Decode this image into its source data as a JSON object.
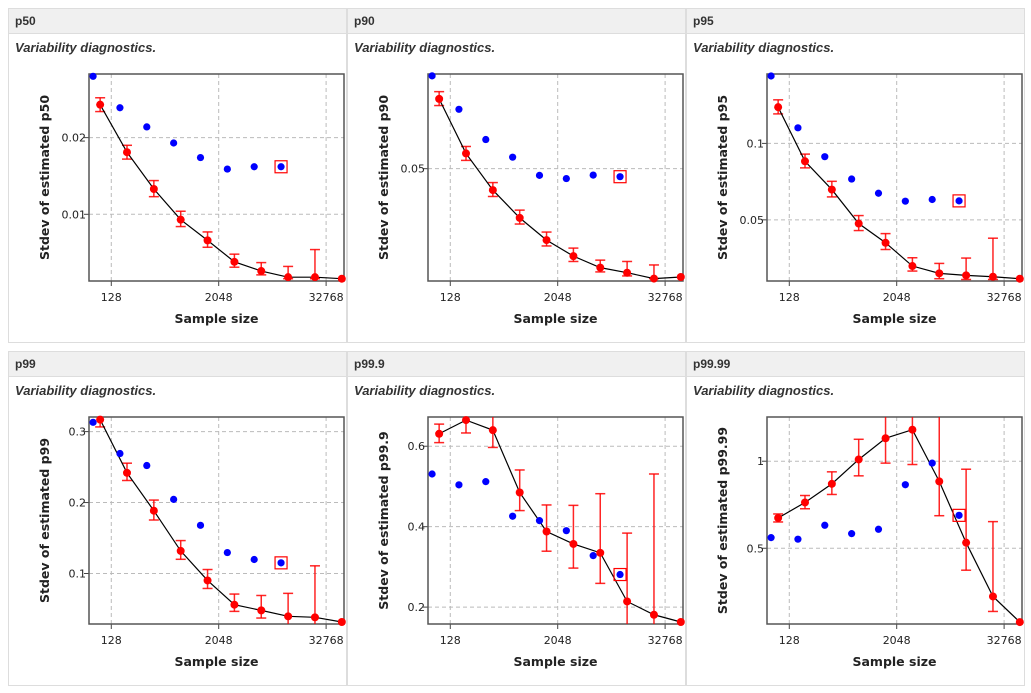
{
  "colors": {
    "blue": "#0000ff",
    "red": "#ff0000",
    "line": "#000000",
    "grid": "#bbbbbb"
  },
  "chart_data": [
    {
      "type": "scatter",
      "title": "p50",
      "subtitle": "Variability diagnostics.",
      "xlabel": "Sample size",
      "ylabel": "Stdev of estimated p50",
      "xscale": "log2",
      "xlim": [
        72,
        52000
      ],
      "xticks": [
        128,
        2048,
        32768
      ],
      "ylim": [
        0.0013,
        0.0283
      ],
      "yticks": [
        0.01,
        0.02
      ],
      "grid": true,
      "blue": {
        "x": [
          80,
          160,
          320,
          640,
          1280,
          2560,
          5120,
          10240
        ],
        "y": [
          0.028,
          0.0239,
          0.0214,
          0.0193,
          0.0174,
          0.0159,
          0.0162,
          0.0162
        ],
        "highlighted_index": 7
      },
      "red": {
        "x": [
          96,
          192,
          384,
          768,
          1536,
          3072,
          6144,
          12288,
          24576,
          49152
        ],
        "y": [
          0.0243,
          0.0181,
          0.0133,
          0.0093,
          0.0066,
          0.0038,
          0.0026,
          0.0018,
          0.0018,
          0.0016
        ],
        "lo": [
          0.0234,
          0.0172,
          0.0123,
          0.0084,
          0.0057,
          0.0031,
          0.0021,
          0.0016,
          0.0016,
          null
        ],
        "hi": [
          0.0252,
          0.019,
          0.0144,
          0.0104,
          0.0077,
          0.0048,
          0.0037,
          0.0032,
          0.0054,
          null
        ]
      }
    },
    {
      "type": "scatter",
      "title": "p90",
      "subtitle": "Variability diagnostics.",
      "xlabel": "Sample size",
      "ylabel": "Stdev of estimated p90",
      "xscale": "log2",
      "xlim": [
        72,
        52000
      ],
      "xticks": [
        128,
        2048,
        32768
      ],
      "ylim": [
        0.008,
        0.0854
      ],
      "yticks": [
        0.05
      ],
      "grid": true,
      "blue": {
        "x": [
          80,
          160,
          320,
          640,
          1280,
          2560,
          5120,
          10240
        ],
        "y": [
          0.0847,
          0.0722,
          0.0609,
          0.0543,
          0.0475,
          0.0463,
          0.0476,
          0.047
        ],
        "highlighted_index": 7
      },
      "red": {
        "x": [
          96,
          192,
          384,
          768,
          1536,
          3072,
          6144,
          12288,
          24576,
          49152
        ],
        "y": [
          0.0761,
          0.0557,
          0.042,
          0.0316,
          0.0233,
          0.0173,
          0.013,
          0.0111,
          0.0089,
          0.0095
        ],
        "lo": [
          0.0736,
          0.0531,
          0.0396,
          0.0293,
          0.0211,
          0.0153,
          0.0114,
          0.0099,
          0.0089,
          null
        ],
        "hi": [
          0.0788,
          0.0583,
          0.0448,
          0.0345,
          0.0263,
          0.0203,
          0.0158,
          0.0153,
          0.014,
          null
        ]
      }
    },
    {
      "type": "scatter",
      "title": "p95",
      "subtitle": "Variability diagnostics.",
      "xlabel": "Sample size",
      "ylabel": "Stdev of estimated p95",
      "xscale": "log2",
      "xlim": [
        72,
        52000
      ],
      "xticks": [
        128,
        2048,
        32768
      ],
      "ylim": [
        0.01,
        0.1454
      ],
      "yticks": [
        0.05,
        0.1
      ],
      "grid": true,
      "blue": {
        "x": [
          80,
          160,
          320,
          640,
          1280,
          2560,
          5120,
          10240
        ],
        "y": [
          0.1441,
          0.1102,
          0.0913,
          0.0767,
          0.0674,
          0.0622,
          0.0633,
          0.0624
        ],
        "highlighted_index": 7
      },
      "red": {
        "x": [
          96,
          192,
          384,
          768,
          1536,
          3072,
          6144,
          12288,
          24576,
          49152
        ],
        "y": [
          0.1237,
          0.0883,
          0.0698,
          0.0476,
          0.035,
          0.0198,
          0.015,
          0.0137,
          0.0128,
          0.0115
        ],
        "lo": [
          0.1193,
          0.084,
          0.065,
          0.043,
          0.0306,
          0.0165,
          0.0115,
          0.011,
          0.011,
          null
        ],
        "hi": [
          0.1285,
          0.093,
          0.0752,
          0.0528,
          0.041,
          0.0252,
          0.0215,
          0.025,
          0.038,
          null
        ]
      }
    },
    {
      "type": "scatter",
      "title": "p99",
      "subtitle": "Variability diagnostics.",
      "xlabel": "Sample size",
      "ylabel": "Stdev of estimated p99",
      "xscale": "log2",
      "xlim": [
        72,
        52000
      ],
      "xticks": [
        128,
        2048,
        32768
      ],
      "ylim": [
        0.0288,
        0.3206
      ],
      "yticks": [
        0.1,
        0.2,
        0.3
      ],
      "grid": true,
      "blue": {
        "x": [
          80,
          160,
          320,
          640,
          1280,
          2560,
          5120,
          10240
        ],
        "y": [
          0.3131,
          0.2691,
          0.2522,
          0.2045,
          0.1679,
          0.1295,
          0.1197,
          0.115
        ],
        "highlighted_index": 7
      },
      "red": {
        "x": [
          96,
          192,
          384,
          768,
          1536,
          3072,
          6144,
          12288,
          24576,
          49152
        ],
        "y": [
          0.3169,
          0.2419,
          0.1885,
          0.1318,
          0.0902,
          0.056,
          0.048,
          0.0396,
          0.0382,
          0.0316
        ],
        "lo": [
          0.3066,
          0.2311,
          0.1754,
          0.12,
          0.0789,
          0.0466,
          0.0372,
          0.0288,
          0.0288,
          null
        ],
        "hi": [
          0.3206,
          0.2555,
          0.2035,
          0.1464,
          0.1056,
          0.071,
          0.069,
          0.072,
          0.1108,
          null
        ]
      }
    },
    {
      "type": "scatter",
      "title": "p99.9",
      "subtitle": "Variability diagnostics.",
      "xlabel": "Sample size",
      "ylabel": "Stdev of estimated p99.9",
      "xscale": "log2",
      "xlim": [
        72,
        52000
      ],
      "xticks": [
        128,
        2048,
        32768
      ],
      "ylim": [
        0.158,
        0.6727
      ],
      "yticks": [
        0.2,
        0.4,
        0.6
      ],
      "grid": true,
      "blue": {
        "x": [
          80,
          160,
          320,
          640,
          1280,
          2560,
          5120,
          10240
        ],
        "y": [
          0.531,
          0.504,
          0.512,
          0.426,
          0.415,
          0.39,
          0.328,
          0.281
        ],
        "highlighted_index": 7
      },
      "red": {
        "x": [
          96,
          192,
          384,
          768,
          1536,
          3072,
          6144,
          12288,
          24576,
          49152
        ],
        "y": [
          0.631,
          0.665,
          0.64,
          0.485,
          0.388,
          0.357,
          0.335,
          0.214,
          0.181,
          0.163
        ],
        "lo": [
          0.609,
          0.633,
          0.597,
          0.44,
          0.339,
          0.297,
          0.259,
          0.158,
          0.158,
          null
        ],
        "hi": [
          0.655,
          0.6727,
          0.6727,
          0.541,
          0.454,
          0.453,
          0.482,
          0.384,
          0.531,
          null
        ]
      }
    },
    {
      "type": "scatter",
      "title": "p99.99",
      "subtitle": "Variability diagnostics.",
      "xlabel": "Sample size",
      "ylabel": "Stdev of estimated p99.99",
      "xscale": "log2",
      "xlim": [
        72,
        52000
      ],
      "xticks": [
        128,
        2048,
        32768
      ],
      "ylim": [
        0.0649,
        1.254
      ],
      "yticks": [
        0.5,
        1
      ],
      "grid": true,
      "blue": {
        "x": [
          80,
          160,
          320,
          640,
          1280,
          2560,
          5120,
          10240
        ],
        "y": [
          0.561,
          0.552,
          0.632,
          0.584,
          0.609,
          0.865,
          0.989,
          0.689
        ],
        "highlighted_index": 7
      },
      "red": {
        "x": [
          96,
          192,
          384,
          768,
          1536,
          3072,
          6144,
          12288,
          24576,
          49152
        ],
        "y": [
          0.674,
          0.763,
          0.87,
          1.01,
          1.132,
          1.181,
          0.884,
          0.532,
          0.223,
          0.076
        ],
        "lo": [
          0.651,
          0.727,
          0.809,
          0.916,
          0.989,
          0.981,
          0.687,
          0.374,
          0.137,
          null
        ],
        "hi": [
          0.697,
          0.803,
          0.939,
          1.126,
          1.254,
          1.254,
          1.254,
          0.954,
          0.653,
          null
        ]
      }
    }
  ]
}
